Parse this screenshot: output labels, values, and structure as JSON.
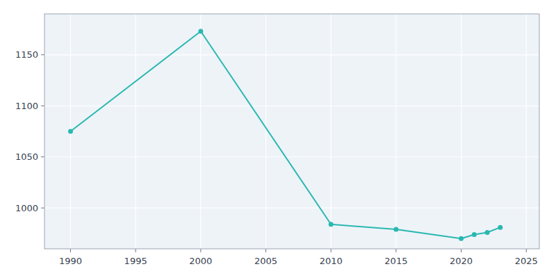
{
  "chart_data": {
    "type": "line",
    "x": [
      1990,
      2000,
      2010,
      2015,
      2020,
      2021,
      2022,
      2023
    ],
    "values": [
      1075,
      1173,
      984,
      979,
      970,
      974,
      976,
      981
    ],
    "color": "#29b8b0",
    "marker": "circle",
    "xlim": [
      1988,
      2026
    ],
    "ylim": [
      960,
      1190
    ],
    "xticks": [
      1990,
      1995,
      2000,
      2005,
      2010,
      2015,
      2020,
      2025
    ],
    "yticks": [
      1000,
      1050,
      1100,
      1150
    ],
    "grid": true
  }
}
